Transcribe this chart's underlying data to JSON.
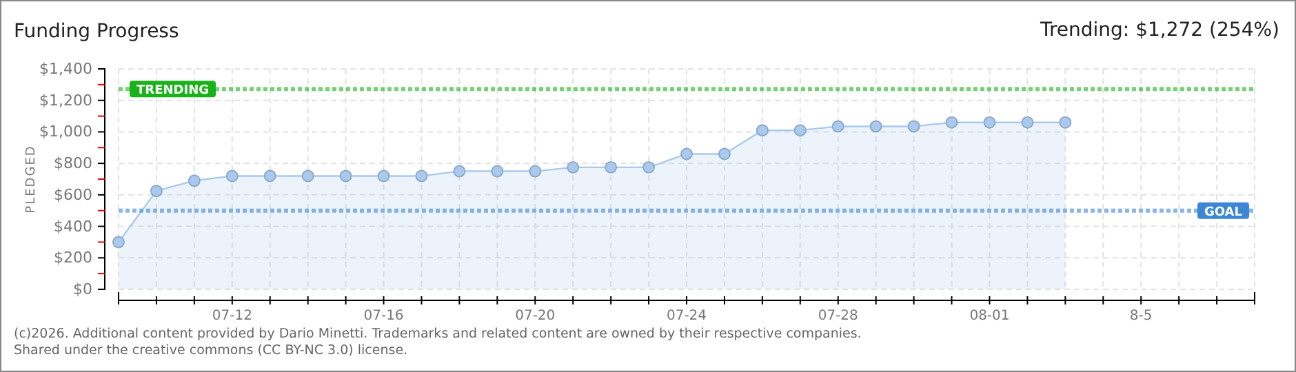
{
  "chart_data": {
    "type": "area",
    "title": "Funding Progress",
    "ylabel": "PLEDGED",
    "categories": [
      null,
      null,
      null,
      "07-12",
      null,
      null,
      null,
      "07-16",
      null,
      null,
      null,
      "07-20",
      null,
      null,
      null,
      "07-24",
      null,
      null,
      null,
      "07-28",
      null,
      null,
      null,
      "08-01",
      null,
      null,
      null,
      "8-5",
      null,
      null,
      null
    ],
    "series": [
      {
        "color": "#a9c9ee",
        "values": [
          300,
          625,
          690,
          720,
          720,
          720,
          720,
          720,
          720,
          750,
          750,
          750,
          775,
          775,
          775,
          860,
          860,
          1010,
          1010,
          1035,
          1035,
          1035,
          1060,
          1060,
          1060,
          1060,
          null,
          null,
          null,
          null,
          null
        ]
      }
    ],
    "ylim": [
      0,
      1400
    ],
    "yticks": [
      {
        "value": 0,
        "label": "$0"
      },
      {
        "value": 100,
        "label": null
      },
      {
        "value": 200,
        "label": "$200"
      },
      {
        "value": 300,
        "label": null
      },
      {
        "value": 400,
        "label": "$400"
      },
      {
        "value": 500,
        "label": null
      },
      {
        "value": 600,
        "label": "$600"
      },
      {
        "value": 700,
        "label": null
      },
      {
        "value": 800,
        "label": "$800"
      },
      {
        "value": 900,
        "label": null
      },
      {
        "value": 1000,
        "label": "$1,000"
      },
      {
        "value": 1100,
        "label": null
      },
      {
        "value": 1200,
        "label": "$1,200"
      },
      {
        "value": 1300,
        "label": null
      },
      {
        "value": 1400,
        "label": "$1,400"
      }
    ],
    "grid": true,
    "marker": "circle",
    "line_style": "solid",
    "ref_lines": [
      {
        "axis": "y",
        "value": 1272,
        "label": "TRENDING",
        "color": "#19b319",
        "line_style": "dotted"
      },
      {
        "axis": "y",
        "value": 500,
        "label": "GOAL",
        "color": "#3d86d6",
        "line_style": "dotted"
      }
    ],
    "annotations": [
      "Trending: $1,272 (254%)",
      "(c)2026. Additional content provided by Dario Minetti. Trademarks and related content are owned by their respective companies.",
      "Shared under the creative commons (CC BY-NC 3.0) license."
    ]
  }
}
